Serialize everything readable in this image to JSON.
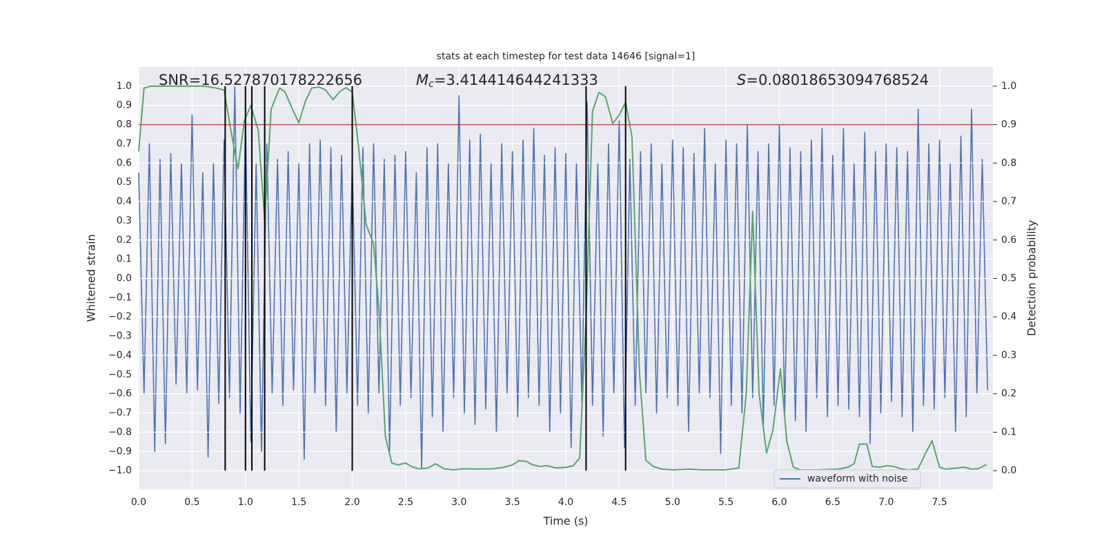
{
  "chart_data": {
    "type": "line",
    "title": "stats at each timestep for test data 14646 [signal=1]",
    "xlabel": "Time (s)",
    "ylabel": "Whitened strain",
    "y2label": "Detection probability",
    "xlim": [
      0,
      8
    ],
    "ylim": [
      -1.1,
      1.1
    ],
    "y2lim": [
      -0.05,
      1.05
    ],
    "xticks": [
      {
        "value": 0,
        "label": "0.0"
      },
      0.5,
      {
        "value": 1,
        "label": "1.0"
      },
      1.5,
      {
        "value": 2,
        "label": "2.0"
      },
      2.5,
      {
        "value": 3,
        "label": "3.0"
      },
      3.5,
      {
        "value": 4,
        "label": "4.0"
      },
      4.5,
      {
        "value": 5,
        "label": "5.0"
      },
      5.5,
      {
        "value": 6,
        "label": "6.0"
      },
      6.5,
      {
        "value": 7,
        "label": "7.0"
      },
      7.5
    ],
    "yticks": [
      {
        "value": 1,
        "label": "1.0"
      },
      0.9,
      0.8,
      0.7,
      0.6,
      0.5,
      0.4,
      0.3,
      0.2,
      0.1,
      {
        "value": 0,
        "label": "0.0"
      },
      {
        "value": -0.1,
        "label": "−0.1"
      },
      {
        "value": -0.2,
        "label": "−0.2"
      },
      {
        "value": -0.3,
        "label": "−0.3"
      },
      {
        "value": -0.4,
        "label": "−0.4"
      },
      {
        "value": -0.5,
        "label": "−0.5"
      },
      {
        "value": -0.6,
        "label": "−0.6"
      },
      {
        "value": -0.7,
        "label": "−0.7"
      },
      {
        "value": -0.8,
        "label": "−0.8"
      },
      {
        "value": -0.9,
        "label": "−0.9"
      },
      {
        "value": -1,
        "label": "−1.0"
      }
    ],
    "y2ticks": [
      {
        "value": 1,
        "label": "1.0"
      },
      0.9,
      0.8,
      0.7,
      0.6,
      0.5,
      0.4,
      0.3,
      0.2,
      0.1,
      {
        "value": 0,
        "label": "0.0"
      }
    ],
    "grid": true,
    "legend": "lower right",
    "annotations": [
      {
        "text": "SNR=16.527870178222656"
      },
      {
        "symbol": "M",
        "subscript": "c",
        "text": "=3.414414644241333"
      },
      {
        "symbol": "S",
        "text": "=0.08018653094768524"
      }
    ],
    "hline": {
      "y": 0.8,
      "color": "#c44e52"
    },
    "vlines": [
      0.81,
      1.0,
      1.06,
      1.18,
      2.0,
      4.19,
      4.56
    ],
    "vline_span": [
      -1,
      1
    ],
    "series": [
      {
        "name": "waveform with noise",
        "color": "#4c72b0",
        "x": [
          0,
          0.05,
          0.1,
          0.15,
          0.2,
          0.25,
          0.3,
          0.35,
          0.4,
          0.45,
          0.5,
          0.55,
          0.6,
          0.65,
          0.7,
          0.75,
          0.8,
          0.85,
          0.9,
          0.95,
          1,
          1.05,
          1.1,
          1.15,
          1.2,
          1.25,
          1.3,
          1.35,
          1.4,
          1.45,
          1.5,
          1.55,
          1.6,
          1.65,
          1.7,
          1.75,
          1.8,
          1.85,
          1.9,
          1.95,
          2,
          2.05,
          2.1,
          2.15,
          2.2,
          2.25,
          2.3,
          2.35,
          2.4,
          2.45,
          2.5,
          2.55,
          2.6,
          2.65,
          2.7,
          2.75,
          2.8,
          2.85,
          2.9,
          2.95,
          3,
          3.05,
          3.1,
          3.15,
          3.2,
          3.25,
          3.3,
          3.35,
          3.4,
          3.45,
          3.5,
          3.55,
          3.6,
          3.65,
          3.7,
          3.75,
          3.8,
          3.85,
          3.9,
          3.95,
          4,
          4.05,
          4.1,
          4.15,
          4.2,
          4.25,
          4.3,
          4.35,
          4.4,
          4.45,
          4.5,
          4.55,
          4.6,
          4.65,
          4.7,
          4.75,
          4.8,
          4.85,
          4.9,
          4.95,
          5,
          5.05,
          5.1,
          5.15,
          5.2,
          5.25,
          5.3,
          5.35,
          5.4,
          5.45,
          5.5,
          5.55,
          5.6,
          5.65,
          5.7,
          5.75,
          5.8,
          5.85,
          5.9,
          5.95,
          6,
          6.05,
          6.1,
          6.15,
          6.2,
          6.25,
          6.3,
          6.35,
          6.4,
          6.45,
          6.5,
          6.55,
          6.6,
          6.65,
          6.7,
          6.75,
          6.8,
          6.85,
          6.9,
          6.95,
          7,
          7.05,
          7.1,
          7.15,
          7.2,
          7.25,
          7.3,
          7.35,
          7.4,
          7.45,
          7.5,
          7.55,
          7.6,
          7.65,
          7.7,
          7.75,
          7.8,
          7.85,
          7.9,
          7.95
        ],
        "values": [
          0.55,
          -0.6,
          0.7,
          -0.9,
          0.62,
          -0.86,
          0.65,
          -0.55,
          0.6,
          -0.6,
          0.85,
          -0.58,
          0.55,
          -0.93,
          0.6,
          -0.65,
          0.72,
          -0.62,
          1.0,
          -0.7,
          0.82,
          -0.85,
          0.6,
          -0.9,
          0.7,
          -0.6,
          0.62,
          -0.66,
          0.66,
          -0.58,
          0.6,
          -0.94,
          0.7,
          -0.6,
          0.72,
          -0.66,
          0.68,
          -0.8,
          0.64,
          -0.6,
          0.6,
          -0.66,
          0.68,
          -0.7,
          0.7,
          -0.6,
          0.62,
          -0.9,
          0.64,
          -0.66,
          0.66,
          -0.62,
          0.55,
          -0.99,
          0.68,
          -0.72,
          0.7,
          -0.8,
          0.6,
          -0.62,
          0.95,
          -0.7,
          0.72,
          -0.76,
          0.75,
          -0.68,
          0.6,
          -0.8,
          0.7,
          -0.6,
          0.66,
          -0.72,
          0.72,
          -0.62,
          0.78,
          -0.66,
          0.64,
          -0.8,
          0.68,
          -0.7,
          0.65,
          -0.88,
          0.6,
          -0.64,
          0.92,
          -0.66,
          0.6,
          -0.82,
          0.7,
          -0.6,
          0.82,
          -0.88,
          0.62,
          -0.66,
          0.66,
          -0.6,
          0.7,
          -0.7,
          0.6,
          -0.62,
          0.72,
          -0.66,
          0.68,
          -0.8,
          0.65,
          -0.6,
          0.78,
          -0.62,
          0.6,
          -0.91,
          0.72,
          -0.66,
          0.7,
          -0.7,
          0.8,
          -0.62,
          0.66,
          -0.76,
          0.7,
          -0.66,
          0.8,
          -0.7,
          0.68,
          -0.74,
          0.66,
          -0.8,
          0.72,
          -0.62,
          0.78,
          -0.72,
          0.64,
          -0.66,
          0.78,
          -0.68,
          0.6,
          -0.72,
          0.76,
          -0.86,
          0.66,
          -0.7,
          0.7,
          -0.64,
          0.68,
          -0.72,
          0.66,
          -0.8,
          0.88,
          -0.66,
          0.7,
          -0.68,
          0.72,
          -0.62,
          0.6,
          -0.8,
          0.74,
          -0.72,
          0.88,
          -0.6,
          0.62,
          -0.58
        ]
      },
      {
        "color": "#55a868",
        "axis": "y2",
        "x": [
          0,
          0.05,
          0.11,
          0.61,
          0.71,
          0.8,
          0.86,
          0.93,
          0.99,
          1.05,
          1.12,
          1.18,
          1.24,
          1.32,
          1.37,
          1.44,
          1.5,
          1.56,
          1.62,
          1.69,
          1.75,
          1.82,
          1.88,
          1.94,
          2.0,
          2.06,
          2.13,
          2.2,
          2.25,
          2.31,
          2.37,
          2.43,
          2.5,
          2.56,
          2.63,
          2.71,
          2.78,
          2.86,
          2.94,
          3.05,
          3.18,
          3.32,
          3.42,
          3.5,
          3.56,
          3.63,
          3.69,
          3.76,
          3.82,
          3.91,
          4.01,
          4.07,
          4.13,
          4.19,
          4.25,
          4.31,
          4.37,
          4.44,
          4.5,
          4.56,
          4.62,
          4.69,
          4.75,
          4.82,
          4.9,
          5.0,
          5.16,
          5.29,
          5.49,
          5.62,
          5.69,
          5.75,
          5.81,
          5.88,
          5.94,
          6.01,
          6.07,
          6.13,
          6.2,
          6.35,
          6.55,
          6.64,
          6.7,
          6.75,
          6.82,
          6.87,
          6.94,
          7.01,
          7.07,
          7.14,
          7.21,
          7.3,
          7.37,
          7.43,
          7.5,
          7.56,
          7.67,
          7.73,
          7.8,
          7.86,
          7.94
        ],
        "values": [
          0.83,
          0.995,
          1.0,
          1.0,
          0.996,
          0.99,
          0.89,
          0.785,
          0.91,
          0.95,
          0.885,
          0.65,
          0.94,
          0.995,
          0.985,
          0.94,
          0.905,
          0.96,
          0.995,
          0.998,
          0.99,
          0.965,
          0.985,
          0.996,
          0.985,
          0.84,
          0.64,
          0.59,
          0.42,
          0.09,
          0.02,
          0.015,
          0.02,
          0.01,
          0.005,
          0.007,
          0.018,
          0.005,
          0.002,
          0.005,
          0.004,
          0.005,
          0.009,
          0.015,
          0.026,
          0.024,
          0.015,
          0.011,
          0.013,
          0.007,
          0.009,
          0.013,
          0.033,
          0.4,
          0.934,
          0.984,
          0.973,
          0.903,
          0.925,
          0.958,
          0.867,
          0.255,
          0.027,
          0.011,
          0.004,
          0.002,
          0.004,
          0.002,
          0.002,
          0.007,
          0.2,
          0.675,
          0.2,
          0.046,
          0.106,
          0.265,
          0.077,
          0.009,
          0.002,
          0.002,
          0.004,
          0.009,
          0.018,
          0.069,
          0.069,
          0.011,
          0.009,
          0.013,
          0.011,
          0.005,
          0.002,
          0.005,
          0.046,
          0.078,
          0.009,
          0.004,
          0.007,
          0.009,
          0.004,
          0.005,
          0.016
        ]
      }
    ]
  }
}
